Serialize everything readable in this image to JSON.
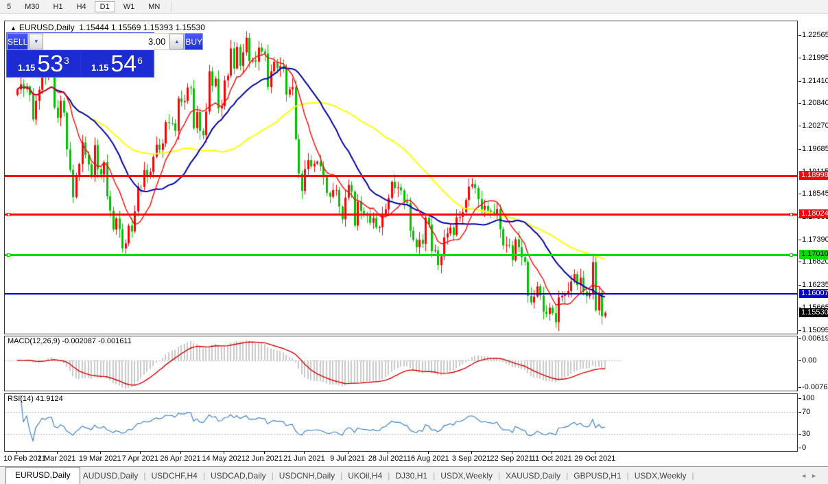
{
  "toolbar": {
    "timeframes": [
      "5",
      "M30",
      "H1",
      "H4",
      "D1",
      "W1",
      "MN"
    ],
    "active": "D1"
  },
  "chart": {
    "collapse_arrow": "▲",
    "symbol_label": "EURUSD,Daily",
    "ohlc": {
      "open": "1.15444",
      "high": "1.15569",
      "low": "1.15393",
      "close": "1.15530"
    },
    "trade_panel": {
      "sell_label": "SELL",
      "buy_label": "BUY",
      "volume": "3.00",
      "spin_down": "▼",
      "spin_up": "▲",
      "sell_small": "1.15",
      "sell_big": "53",
      "sell_sup": "3",
      "buy_small": "1.15",
      "buy_big": "54",
      "buy_sup": "6"
    }
  },
  "chart_data": {
    "type": "candlestick",
    "symbol": "EURUSD",
    "timeframe": "Daily",
    "start_date": "10 Feb 2021",
    "end_date": "3 Nov 2021",
    "bull_color": "#FF0000",
    "bear_color": "#00C000",
    "first_open": 1.2105,
    "last_high": 1.15569,
    "last_low": 1.15393,
    "closes": [
      1.2119,
      1.2132,
      1.212,
      1.2127,
      1.2105,
      1.2043,
      1.209,
      1.2118,
      1.2157,
      1.215,
      1.2168,
      1.2175,
      1.2073,
      1.2047,
      1.209,
      1.206,
      1.1967,
      1.1915,
      1.1846,
      1.1899,
      1.193,
      1.1985,
      1.1953,
      1.1929,
      1.1899,
      1.1978,
      1.1917,
      1.1903,
      1.1935,
      1.1848,
      1.1812,
      1.1764,
      1.1792,
      1.1765,
      1.1716,
      1.1729,
      1.1774,
      1.1759,
      1.181,
      1.1873,
      1.1872,
      1.1915,
      1.1899,
      1.191,
      1.1948,
      1.1979,
      1.1966,
      1.1982,
      1.2036,
      1.2034,
      1.2033,
      1.2014,
      1.2096,
      1.2087,
      1.209,
      1.2124,
      1.2122,
      1.2021,
      1.2062,
      1.2014,
      1.2003,
      1.2063,
      1.2165,
      1.2128,
      1.2146,
      1.2071,
      1.2077,
      1.2142,
      1.2154,
      1.2223,
      1.2172,
      1.2227,
      1.2179,
      1.2213,
      1.225,
      1.2191,
      1.2193,
      1.2189,
      1.2225,
      1.2215,
      1.221,
      1.2125,
      1.2165,
      1.2189,
      1.2173,
      1.2178,
      1.2171,
      1.2106,
      1.2119,
      1.2125,
      1.1993,
      1.1906,
      1.1862,
      1.1917,
      1.194,
      1.1924,
      1.1931,
      1.1936,
      1.1924,
      1.1897,
      1.1857,
      1.1847,
      1.1864,
      1.1864,
      1.1822,
      1.179,
      1.1845,
      1.1877,
      1.186,
      1.1774,
      1.1835,
      1.1811,
      1.1805,
      1.1799,
      1.1781,
      1.1793,
      1.1769,
      1.177,
      1.1803,
      1.1815,
      1.1844,
      1.1885,
      1.1869,
      1.1871,
      1.1863,
      1.1835,
      1.1831,
      1.1761,
      1.1738,
      1.1719,
      1.1738,
      1.1728,
      1.1794,
      1.1776,
      1.1709,
      1.1711,
      1.1674,
      1.1696,
      1.1744,
      1.1754,
      1.1769,
      1.175,
      1.1795,
      1.1796,
      1.1808,
      1.1839,
      1.1873,
      1.1879,
      1.1869,
      1.1841,
      1.1815,
      1.1824,
      1.1812,
      1.1809,
      1.1803,
      1.1816,
      1.1765,
      1.1724,
      1.1725,
      1.1724,
      1.1686,
      1.1739,
      1.1719,
      1.1694,
      1.1682,
      1.1596,
      1.1579,
      1.1594,
      1.162,
      1.1597,
      1.1556,
      1.155,
      1.1566,
      1.1552,
      1.1529,
      1.1592,
      1.1596,
      1.16,
      1.1608,
      1.1632,
      1.1651,
      1.1623,
      1.1642,
      1.1607,
      1.1595,
      1.1602,
      1.1681,
      1.1559,
      1.1604,
      1.15444,
      1.1553
    ],
    "moving_averages": [
      {
        "period": 55,
        "color": "#FFFF00"
      },
      {
        "period": 25,
        "color": "#0000A8"
      },
      {
        "period": 10,
        "color": "#FF0000"
      }
    ],
    "horizontal_lines": [
      {
        "price": 1.18998,
        "label": "1.18998",
        "color": "#FF0000",
        "text": "#ffffff",
        "thickness": 3,
        "handles": false
      },
      {
        "price": 1.18024,
        "label": "1.18024",
        "color": "#FF0000",
        "text": "#ffffff",
        "thickness": 3,
        "handles": true
      },
      {
        "price": 1.1701,
        "label": "1.17010",
        "color": "#00DD00",
        "text": "#000000",
        "thickness": 3,
        "handles": true
      },
      {
        "price": 1.16007,
        "label": "1.16007",
        "color": "#0000D0",
        "text": "#ffffff",
        "thickness": 2,
        "handles": false
      }
    ],
    "bid_marker": {
      "price": 1.1553,
      "label": "1.15530",
      "color": "#000000",
      "text": "#ffffff"
    },
    "y_ticks": [
      "1.22565",
      "1.21995",
      "1.21410",
      "1.20840",
      "1.20270",
      "1.19685",
      "1.19115",
      "1.18545",
      "1.17960",
      "1.17390",
      "1.16820",
      "1.16235",
      "1.15665",
      "1.15095"
    ],
    "x_ticks": [
      {
        "label": "10 Feb 2021",
        "index": 0
      },
      {
        "label": "1 Mar 2021",
        "index": 13
      },
      {
        "label": "19 Mar 2021",
        "index": 27
      },
      {
        "label": "7 Apr 2021",
        "index": 40
      },
      {
        "label": "26 Apr 2021",
        "index": 53
      },
      {
        "label": "14 May 2021",
        "index": 67
      },
      {
        "label": "2 Jun 2021",
        "index": 80
      },
      {
        "label": "21 Jun 2021",
        "index": 93
      },
      {
        "label": "9 Jul 2021",
        "index": 107
      },
      {
        "label": "28 Jul 2021",
        "index": 120
      },
      {
        "label": "16 Aug 2021",
        "index": 133
      },
      {
        "label": "3 Sep 2021",
        "index": 147
      },
      {
        "label": "22 Sep 2021",
        "index": 160
      },
      {
        "label": "11 Oct 2021",
        "index": 173
      },
      {
        "label": "29 Oct 2021",
        "index": 187
      }
    ],
    "macd": {
      "label": "MACD(12,26,9)",
      "fast": 12,
      "slow": 26,
      "signal": 9,
      "value": "-0.002087",
      "signal_value": "-0.001611",
      "axis": [
        "0.006193",
        "0.00",
        "-0.00762"
      ],
      "hist_color": "#C8C8C8",
      "line_color": "#D20000"
    },
    "rsi": {
      "label": "RSI(14)",
      "period": 14,
      "value": "41.9124",
      "axis": [
        "100",
        "70",
        "30",
        "0"
      ],
      "levels": [
        70,
        30
      ],
      "color": "#3E81C8",
      "level_color": "#ADADAD"
    }
  },
  "tabs": {
    "items": [
      "EURUSD,Daily",
      "AUDUSD,Daily",
      "USDCHF,H4",
      "USDCAD,Daily",
      "USDCNH,Daily",
      "UKOil,H4",
      "DJ30,H1",
      "USDX,Weekly",
      "XAUUSD,Daily",
      "GBPUSD,H1",
      "USDX,Weekly"
    ],
    "active_index": 0,
    "scroll_left": "◄",
    "scroll_right": "►"
  }
}
